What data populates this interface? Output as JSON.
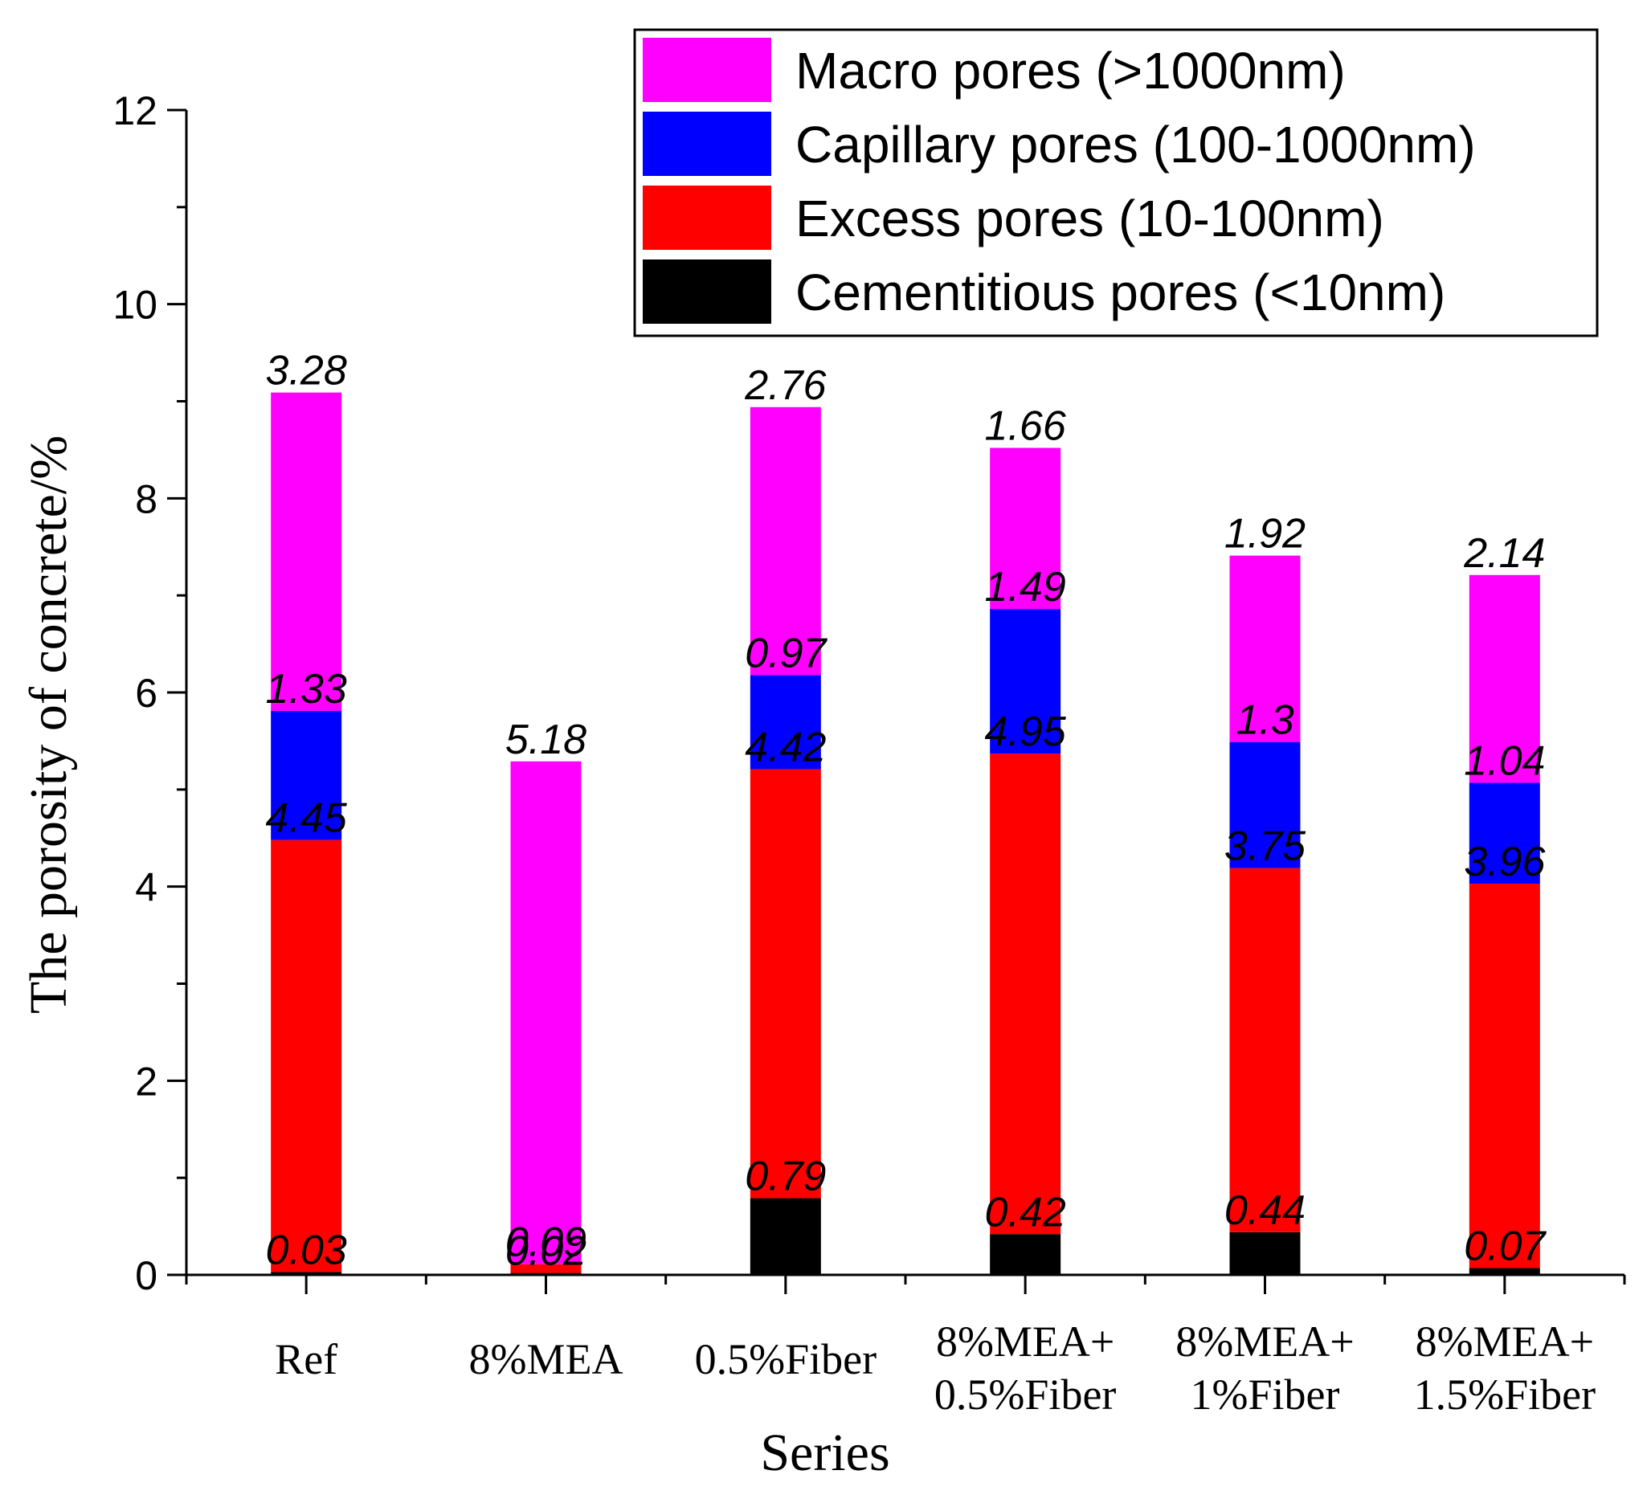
{
  "chart_data": {
    "type": "bar",
    "stacked": true,
    "title": "",
    "xlabel": "Series",
    "ylabel": "The porosity of concrete/%",
    "ylim": [
      0,
      12
    ],
    "yticks": [
      "0",
      "2",
      "4",
      "6",
      "8",
      "10",
      "12"
    ],
    "categories": [
      [
        "Ref"
      ],
      [
        "8%MEA"
      ],
      [
        "0.5%Fiber"
      ],
      [
        "8%MEA+",
        "0.5%Fiber"
      ],
      [
        "8%MEA+",
        "1%Fiber"
      ],
      [
        "8%MEA+",
        "1.5%Fiber"
      ]
    ],
    "series": [
      {
        "name": "Cementitious pores (<10nm)",
        "color": "#000000",
        "values": [
          0.03,
          0.02,
          0.79,
          0.42,
          0.44,
          0.07
        ],
        "labels": [
          "0.03",
          "0.02",
          "0.79",
          "0.42",
          "0.44",
          "0.07"
        ]
      },
      {
        "name": "Excess pores (10-100nm)",
        "color": "#ff0000",
        "values": [
          4.45,
          0.09,
          4.42,
          4.95,
          3.75,
          3.96
        ],
        "labels": [
          "4.45",
          "0.09",
          "4.42",
          "4.95",
          "3.75",
          "3.96"
        ]
      },
      {
        "name": "Capillary pores (100-1000nm)",
        "color": "#0000ff",
        "values": [
          1.33,
          0,
          0.97,
          1.49,
          1.3,
          1.04
        ],
        "labels": [
          "1.33",
          "",
          "0.97",
          "1.49",
          "1.3",
          "1.04"
        ]
      },
      {
        "name": "Macro pores (>1000nm)",
        "color": "#ff00ff",
        "values": [
          3.28,
          5.18,
          2.76,
          1.66,
          1.92,
          2.14
        ],
        "labels": [
          "3.28",
          "5.18",
          "2.76",
          "1.66",
          "1.92",
          "2.14"
        ]
      }
    ],
    "legend_order": [
      3,
      2,
      1,
      0
    ],
    "legend_position": "top-right",
    "grid": false
  }
}
